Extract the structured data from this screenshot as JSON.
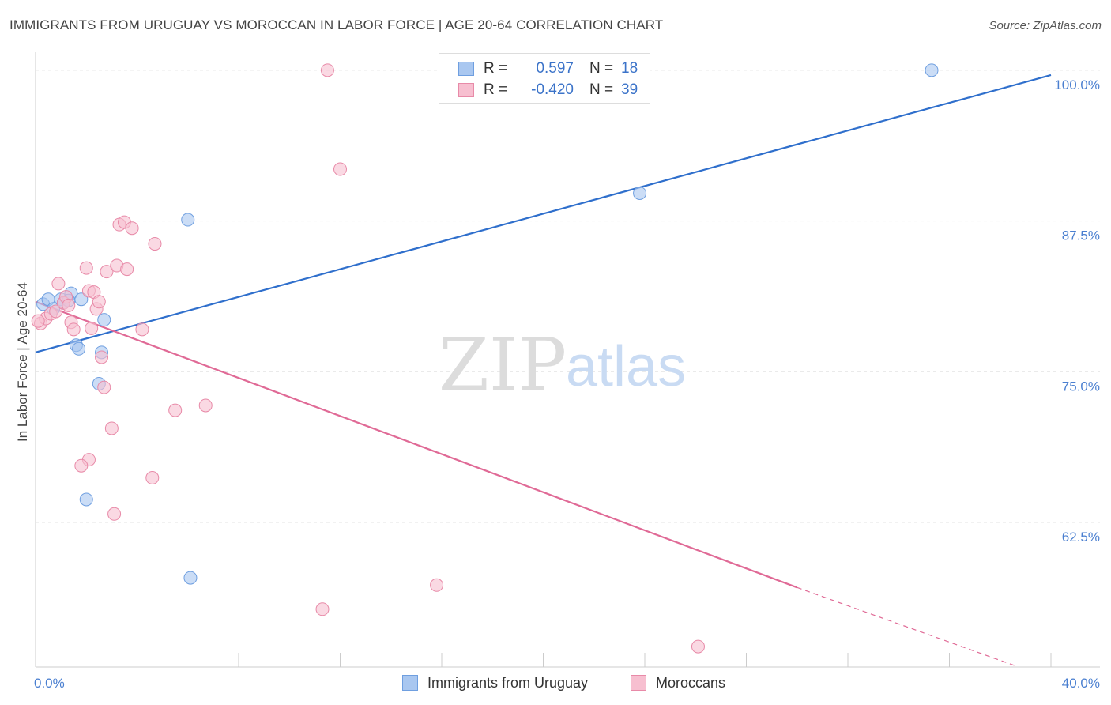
{
  "header": {
    "title": "IMMIGRANTS FROM URUGUAY VS MOROCCAN IN LABOR FORCE | AGE 20-64 CORRELATION CHART",
    "source": "Source: ZipAtlas.com"
  },
  "watermark": {
    "zip": "ZIP",
    "atlas": "atlas"
  },
  "legend": {
    "rows": [
      {
        "r_label": "R =",
        "r_value": "0.597",
        "n_label": "N =",
        "n_value": "18",
        "color": "#a9c7f0",
        "border": "#6f9fe0"
      },
      {
        "r_label": "R =",
        "r_value": "-0.420",
        "n_label": "N =",
        "n_value": "39",
        "color": "#f7bfd0",
        "border": "#e88aa8"
      }
    ]
  },
  "bottom_legend": {
    "items": [
      {
        "label": "Immigrants from Uruguay",
        "color": "#a9c7f0",
        "border": "#6f9fe0"
      },
      {
        "label": "Moroccans",
        "color": "#f7bfd0",
        "border": "#e88aa8"
      }
    ]
  },
  "chart_data": {
    "type": "scatter",
    "title": "IMMIGRANTS FROM URUGUAY VS MOROCCAN IN LABOR FORCE | AGE 20-64 CORRELATION CHART",
    "xlabel": "",
    "ylabel": "In Labor Force | Age 20-64",
    "xlim": [
      0,
      40
    ],
    "ylim": [
      50.5,
      101.5
    ],
    "x_tick_labels": [
      "0.0%",
      "40.0%"
    ],
    "y_ticks": [
      62.5,
      75.0,
      87.5,
      100.0
    ],
    "y_tick_labels": [
      "62.5%",
      "75.0%",
      "87.5%",
      "100.0%"
    ],
    "grid": true,
    "series": [
      {
        "name": "Immigrants from Uruguay",
        "color": "#a9c7f0",
        "stroke": "#6f9fe0",
        "line_color": "#2f6fcc",
        "trend": {
          "x": [
            0,
            40
          ],
          "y": [
            76.6,
            99.6
          ]
        },
        "points": [
          [
            0.3,
            80.6
          ],
          [
            0.5,
            81.0
          ],
          [
            0.7,
            80.2
          ],
          [
            1.0,
            81.0
          ],
          [
            1.1,
            80.7
          ],
          [
            1.4,
            81.5
          ],
          [
            1.3,
            80.9
          ],
          [
            1.8,
            81.0
          ],
          [
            1.6,
            77.2
          ],
          [
            1.7,
            76.9
          ],
          [
            2.7,
            79.3
          ],
          [
            2.6,
            76.6
          ],
          [
            2.5,
            74.0
          ],
          [
            2.0,
            64.4
          ],
          [
            6.0,
            87.6
          ],
          [
            6.1,
            57.9
          ],
          [
            23.8,
            89.8
          ],
          [
            35.3,
            100.0
          ]
        ]
      },
      {
        "name": "Moroccans",
        "color": "#f7bfd0",
        "stroke": "#e88aa8",
        "line_color": "#e06a96",
        "trend": {
          "x": [
            0,
            30.0
          ],
          "y": [
            80.8,
            57.1
          ]
        },
        "trend_dashed": {
          "x": [
            30.0,
            38.6
          ],
          "y": [
            57.1,
            50.6
          ]
        },
        "points": [
          [
            0.2,
            79.0
          ],
          [
            0.4,
            79.4
          ],
          [
            0.6,
            79.8
          ],
          [
            0.8,
            80.0
          ],
          [
            0.9,
            82.3
          ],
          [
            1.1,
            80.7
          ],
          [
            1.2,
            81.2
          ],
          [
            1.3,
            80.5
          ],
          [
            1.4,
            79.1
          ],
          [
            1.5,
            78.5
          ],
          [
            2.1,
            81.7
          ],
          [
            2.3,
            81.6
          ],
          [
            2.2,
            78.6
          ],
          [
            2.4,
            80.2
          ],
          [
            2.5,
            80.8
          ],
          [
            2.0,
            83.6
          ],
          [
            2.8,
            83.3
          ],
          [
            3.2,
            83.8
          ],
          [
            3.6,
            83.5
          ],
          [
            3.3,
            87.2
          ],
          [
            3.5,
            87.4
          ],
          [
            3.8,
            86.9
          ],
          [
            4.7,
            85.6
          ],
          [
            4.2,
            78.5
          ],
          [
            2.6,
            76.2
          ],
          [
            2.7,
            73.7
          ],
          [
            3.0,
            70.3
          ],
          [
            2.1,
            67.7
          ],
          [
            1.8,
            67.2
          ],
          [
            5.5,
            71.8
          ],
          [
            6.7,
            72.2
          ],
          [
            4.6,
            66.2
          ],
          [
            3.1,
            63.2
          ],
          [
            12.0,
            91.8
          ],
          [
            11.5,
            100.0
          ],
          [
            15.8,
            57.3
          ],
          [
            11.3,
            55.3
          ],
          [
            26.1,
            52.2
          ],
          [
            0.1,
            79.2
          ]
        ]
      }
    ]
  }
}
